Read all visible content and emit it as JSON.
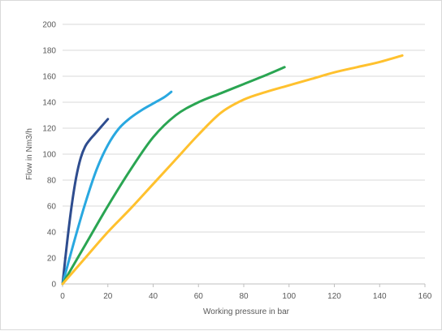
{
  "chart_data": {
    "type": "line",
    "xlabel": "Working pressure in bar",
    "ylabel": "Flow in Nm3/h",
    "xlim": [
      0,
      160
    ],
    "ylim": [
      0,
      200
    ],
    "xticks": [
      0,
      20,
      40,
      60,
      80,
      100,
      120,
      140,
      160
    ],
    "yticks": [
      0,
      20,
      40,
      60,
      80,
      100,
      120,
      140,
      160,
      180,
      200
    ],
    "grid": "horizontal",
    "legend": "none",
    "series": [
      {
        "color": "#2e4d8f",
        "x": [
          0,
          2,
          4,
          6,
          8,
          10,
          12,
          14,
          16,
          18,
          20
        ],
        "y": [
          0,
          32,
          60,
          82,
          97,
          106,
          111,
          115,
          119,
          123,
          127
        ]
      },
      {
        "color": "#29a8e0",
        "x": [
          0,
          5,
          10,
          15,
          20,
          25,
          30,
          35,
          40,
          45,
          48
        ],
        "y": [
          0,
          32,
          62,
          88,
          107,
          120,
          128,
          134,
          139,
          144,
          148
        ]
      },
      {
        "color": "#2aa552",
        "x": [
          0,
          10,
          20,
          30,
          40,
          50,
          60,
          70,
          80,
          90,
          98
        ],
        "y": [
          0,
          30,
          60,
          88,
          113,
          130,
          140,
          147,
          154,
          161,
          167
        ]
      },
      {
        "color": "#ffc12e",
        "x": [
          0,
          10,
          20,
          30,
          40,
          50,
          60,
          70,
          80,
          90,
          100,
          110,
          120,
          130,
          140,
          150
        ],
        "y": [
          0,
          20,
          40,
          58,
          77,
          96,
          115,
          132,
          142,
          148,
          153,
          158,
          163,
          167,
          171,
          176
        ]
      }
    ]
  }
}
